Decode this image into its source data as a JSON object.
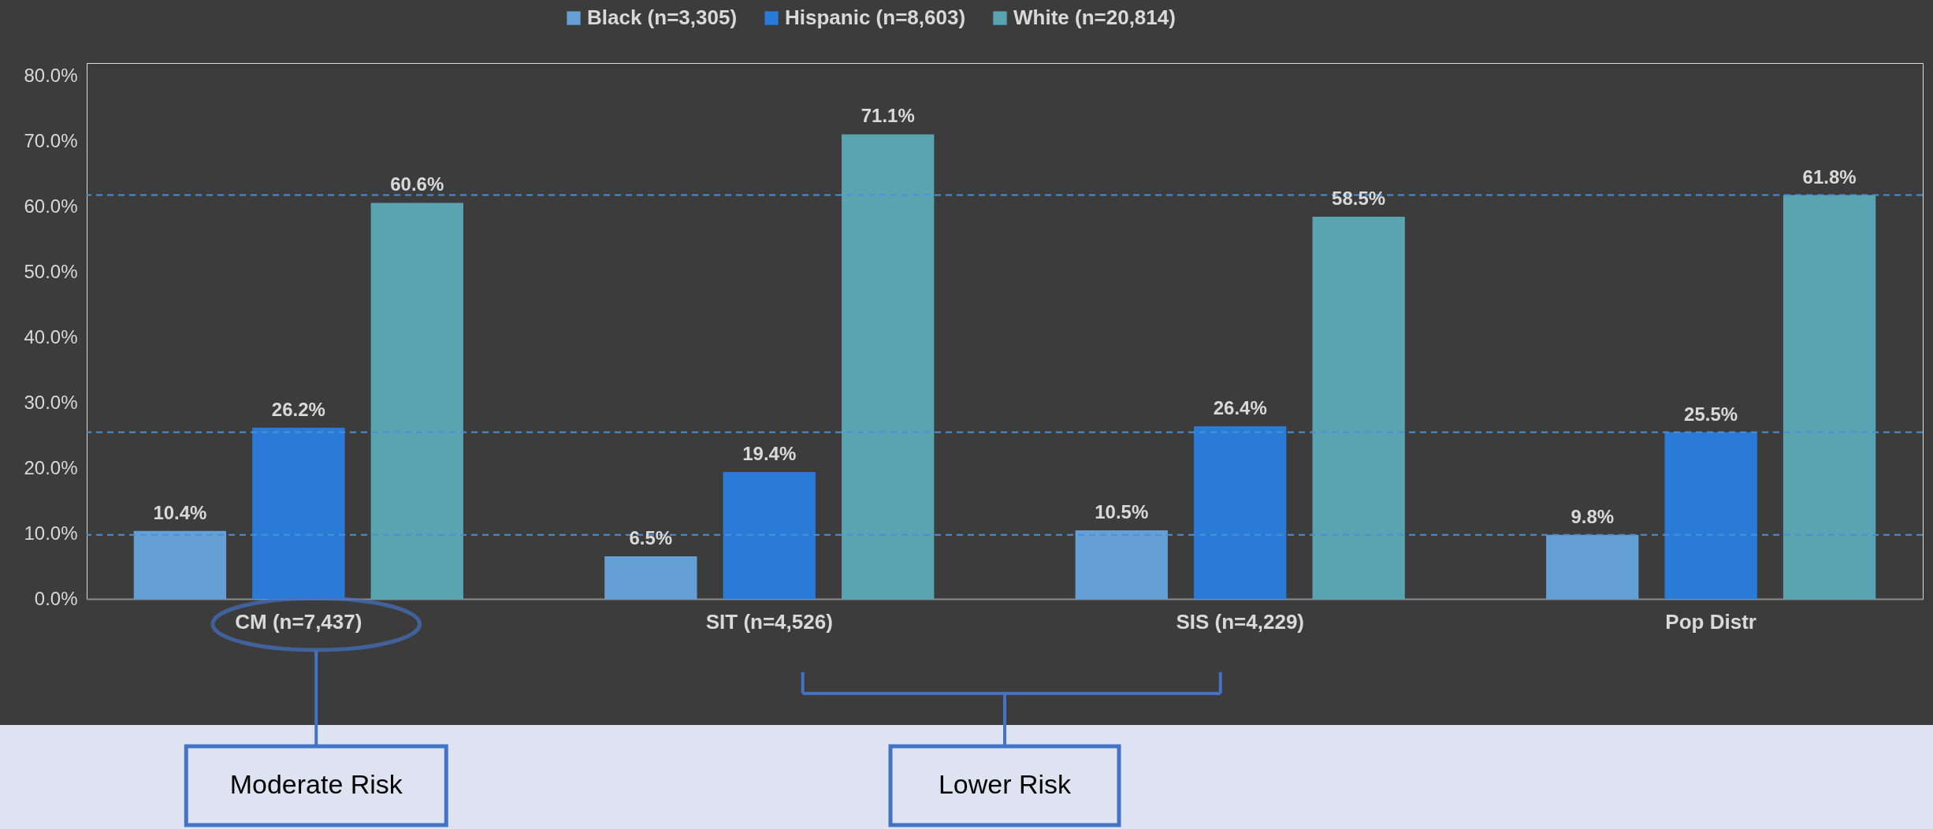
{
  "chart_data": {
    "type": "bar",
    "categories": [
      "CM (n=7,437)",
      "SIT (n=4,526)",
      "SIS (n=4,229)",
      "Pop Distr"
    ],
    "series": [
      {
        "name": "Black (n=3,305)",
        "color": "#64a0d6",
        "values": [
          10.4,
          6.5,
          10.5,
          9.8
        ],
        "value_labels": [
          "10.4%",
          "6.5%",
          "10.5%",
          "9.8%"
        ]
      },
      {
        "name": "Hispanic (n=8,603)",
        "color": "#2a7bd8",
        "values": [
          26.2,
          19.4,
          26.4,
          25.5
        ],
        "value_labels": [
          "26.2%",
          "19.4%",
          "26.4%",
          "25.5%"
        ]
      },
      {
        "name": "White (n=20,814)",
        "color": "#5aa3b0",
        "values": [
          60.6,
          71.1,
          58.5,
          61.8
        ],
        "value_labels": [
          "60.6%",
          "71.1%",
          "58.5%",
          "61.8%"
        ]
      }
    ],
    "ylim": [
      0,
      82
    ],
    "yticks": [
      {
        "value": 0,
        "label": "0.0%"
      },
      {
        "value": 10,
        "label": "10.0%"
      },
      {
        "value": 20,
        "label": "20.0%"
      },
      {
        "value": 30,
        "label": "30.0%"
      },
      {
        "value": 40,
        "label": "40.0%"
      },
      {
        "value": 50,
        "label": "50.0%"
      },
      {
        "value": 60,
        "label": "60.0%"
      },
      {
        "value": 70,
        "label": "70.0%"
      },
      {
        "value": 80,
        "label": "80.0%"
      }
    ],
    "ref_lines": [
      {
        "axis": "y",
        "value": 9.8,
        "color": "#4a90d9",
        "line_style": "dashed"
      },
      {
        "axis": "y",
        "value": 25.5,
        "color": "#4a90d9",
        "line_style": "dashed"
      },
      {
        "axis": "y",
        "value": 61.8,
        "color": "#4a90d9",
        "line_style": "dashed"
      }
    ],
    "annotations": [
      "Moderate Risk",
      "Lower Risk"
    ],
    "grid": false,
    "legend": "top"
  }
}
